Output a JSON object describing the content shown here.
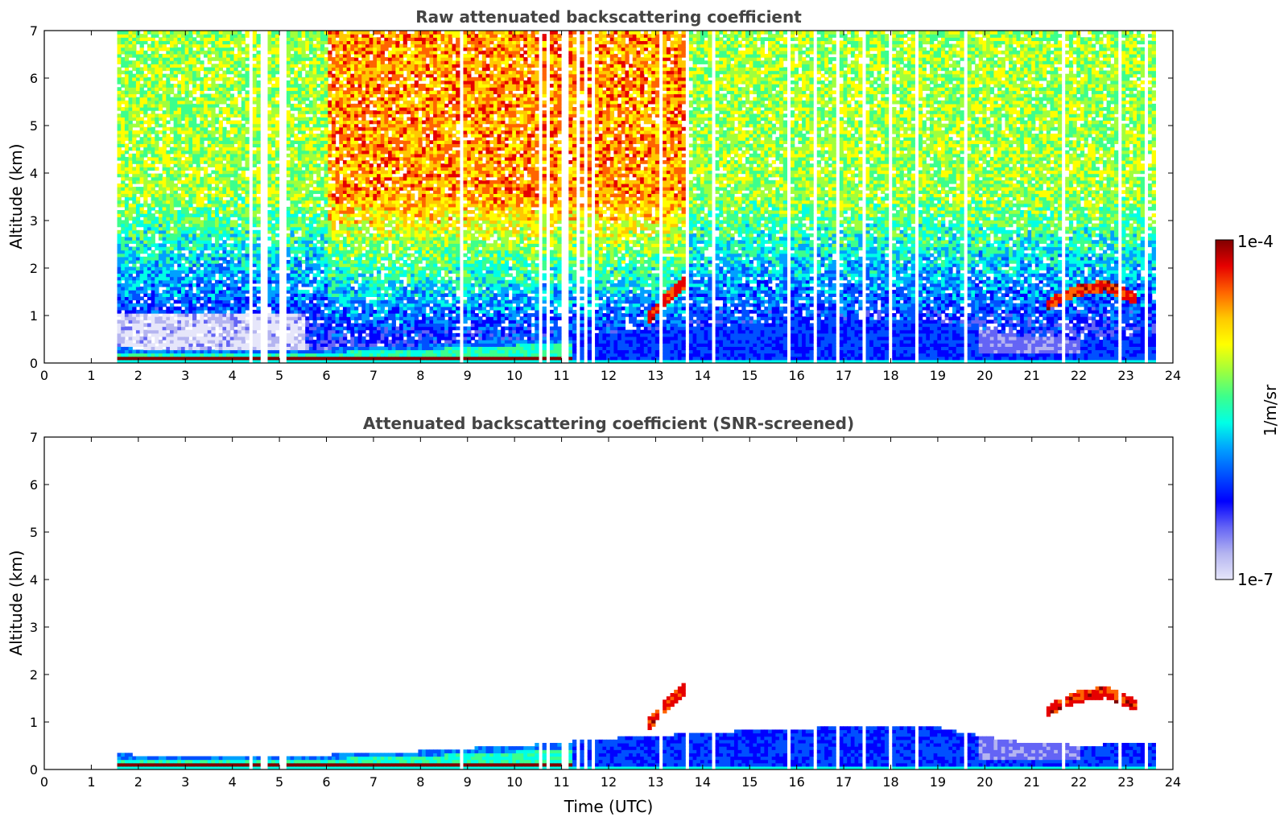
{
  "chart_data": [
    {
      "type": "heatmap",
      "title": "Raw attenuated backscattering coefficient",
      "xlabel": "",
      "ylabel": "Altitude (km)",
      "xlim": [
        0,
        24
      ],
      "ylim": [
        0,
        7
      ],
      "x_ticks": [
        "0",
        "1",
        "2",
        "3",
        "4",
        "5",
        "6",
        "7",
        "8",
        "9",
        "10",
        "11",
        "12",
        "13",
        "14",
        "15",
        "16",
        "17",
        "18",
        "19",
        "20",
        "21",
        "22",
        "23",
        "24"
      ],
      "y_ticks": [
        "0",
        "1",
        "2",
        "3",
        "4",
        "5",
        "6",
        "7"
      ],
      "data_time_range": [
        1.55,
        23.55
      ],
      "missing_profiles_utc": [
        4.4,
        4.65,
        4.75,
        5.05,
        5.15,
        8.85,
        10.55,
        10.75,
        11.05,
        11.15,
        11.35,
        11.55,
        11.65,
        13.1,
        13.7,
        14.25,
        15.8,
        16.4,
        16.85,
        17.45,
        18.0,
        18.55,
        19.6,
        21.7,
        22.85,
        23.4
      ],
      "layers": [
        {
          "name": "surface aerosol layer",
          "start_time": 1.55,
          "end_time": 11.2,
          "top_km": [
            0.3,
            0.28,
            0.26,
            0.28,
            0.3,
            0.35,
            0.42,
            0.5,
            0.55
          ]
        },
        {
          "name": "boundary layer",
          "start_time": 11.2,
          "end_time": 23.55,
          "top_km": [
            0.6,
            0.7,
            0.8,
            0.85,
            0.95,
            0.9,
            0.6,
            0.5,
            0.55
          ]
        },
        {
          "name": "cloud",
          "start_time": 12.8,
          "end_time": 13.7,
          "top_km": [
            0.9,
            1.4,
            1.75
          ]
        },
        {
          "name": "cloud",
          "start_time": 21.3,
          "end_time": 23.2,
          "top_km": [
            1.2,
            1.5,
            1.6,
            1.3
          ]
        }
      ]
    },
    {
      "type": "heatmap",
      "title": "Attenuated backscattering coefficient (SNR-screened)",
      "xlabel": "Time (UTC)",
      "ylabel": "Altitude (km)",
      "xlim": [
        0,
        24
      ],
      "ylim": [
        0,
        7
      ],
      "x_ticks": [
        "0",
        "1",
        "2",
        "3",
        "4",
        "5",
        "6",
        "7",
        "8",
        "9",
        "10",
        "11",
        "12",
        "13",
        "14",
        "15",
        "16",
        "17",
        "18",
        "19",
        "20",
        "21",
        "22",
        "23",
        "24"
      ],
      "y_ticks": [
        "0",
        "1",
        "2",
        "3",
        "4",
        "5",
        "6",
        "7"
      ],
      "data_time_range": [
        1.55,
        23.55
      ]
    }
  ],
  "colorbar": {
    "label": "1/m/sr",
    "max_label": "1e-4",
    "min_label": "1e-7",
    "scale": "log",
    "colormap": [
      "#e6e6fa",
      "#b4b4f0",
      "#6464f5",
      "#0000ff",
      "#0050ff",
      "#00a0ff",
      "#00ffe6",
      "#3cff8c",
      "#a0ff3c",
      "#ffff00",
      "#ffc800",
      "#ff6400",
      "#e60000",
      "#800000"
    ]
  }
}
